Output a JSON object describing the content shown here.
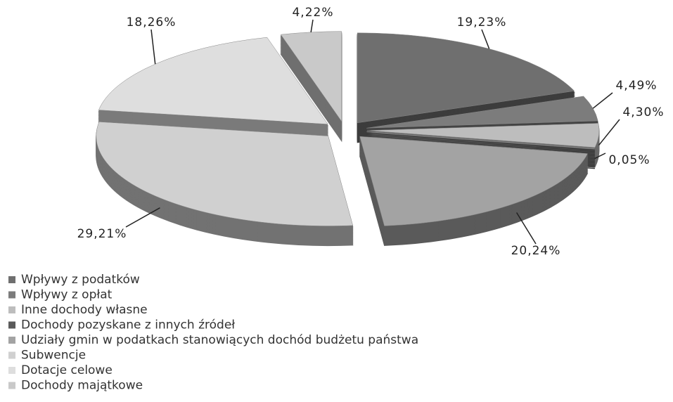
{
  "chart_data": {
    "type": "pie3d",
    "categories": [
      "Wpływy z podatków",
      "Wpływy z opłat",
      "Inne dochody własne",
      "Dochody pozyskane z innych źródeł",
      "Udziały gmin w podatkach stanowiących dochód budżetu państwa",
      "Subwencje",
      "Dotacje celowe",
      "Dochody majątkowe"
    ],
    "values": [
      19.23,
      4.49,
      4.3,
      0.05,
      20.24,
      29.21,
      18.26,
      4.22
    ],
    "value_labels": [
      "19,23%",
      "4,49%",
      "4,30%",
      "0,05%",
      "20,24%",
      "29,21%",
      "18,26%",
      "4,22%"
    ],
    "colors": [
      "#6f6f6f",
      "#7c7c7c",
      "#bdbdbd",
      "#5a5a5a",
      "#a3a3a3",
      "#d0d0d0",
      "#dedede",
      "#c9c9c9"
    ],
    "legend": "bottom-left"
  }
}
